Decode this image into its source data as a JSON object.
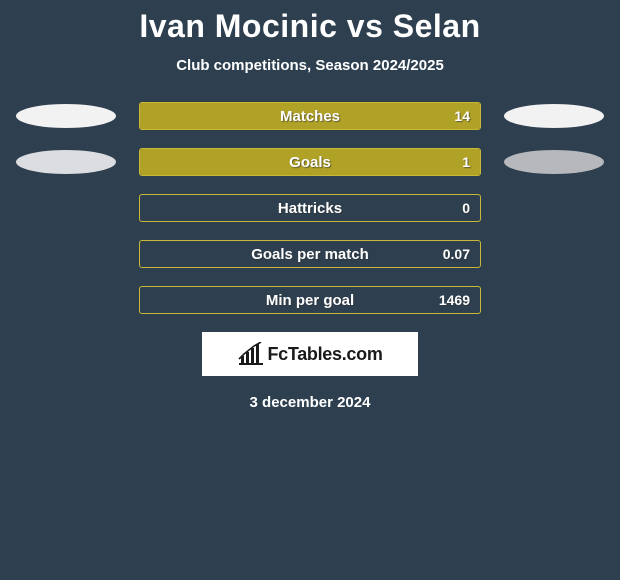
{
  "title": "Ivan Mocinic vs Selan",
  "subtitle": "Club competitions, Season 2024/2025",
  "date": "3 december 2024",
  "logo_text": "FcTables.com",
  "background_color": "#2e4050",
  "ellipse_light": "#f2f2f2",
  "ellipse_mid": "#dcdde0",
  "ellipse_dark": "#b6b8bc",
  "rows": [
    {
      "label": "Matches",
      "value": "14",
      "fill_pct": 100,
      "fill_color": "#b0a127",
      "border_color": "#c8b833",
      "left_ellipse": true,
      "left_ellipse_color": "#f2f2f2",
      "right_ellipse": true,
      "right_ellipse_color": "#f2f2f2"
    },
    {
      "label": "Goals",
      "value": "1",
      "fill_pct": 100,
      "fill_color": "#b0a127",
      "border_color": "#c8b833",
      "left_ellipse": true,
      "left_ellipse_color": "#dcdde0",
      "right_ellipse": true,
      "right_ellipse_color": "#b6b8bc"
    },
    {
      "label": "Hattricks",
      "value": "0",
      "fill_pct": 0,
      "fill_color": "#b0a127",
      "border_color": "#c8b833",
      "left_ellipse": false,
      "right_ellipse": false
    },
    {
      "label": "Goals per match",
      "value": "0.07",
      "fill_pct": 0,
      "fill_color": "#b0a127",
      "border_color": "#c8b833",
      "left_ellipse": false,
      "right_ellipse": false
    },
    {
      "label": "Min per goal",
      "value": "1469",
      "fill_pct": 0,
      "fill_color": "#b0a127",
      "border_color": "#c8b833",
      "left_ellipse": false,
      "right_ellipse": false
    }
  ]
}
